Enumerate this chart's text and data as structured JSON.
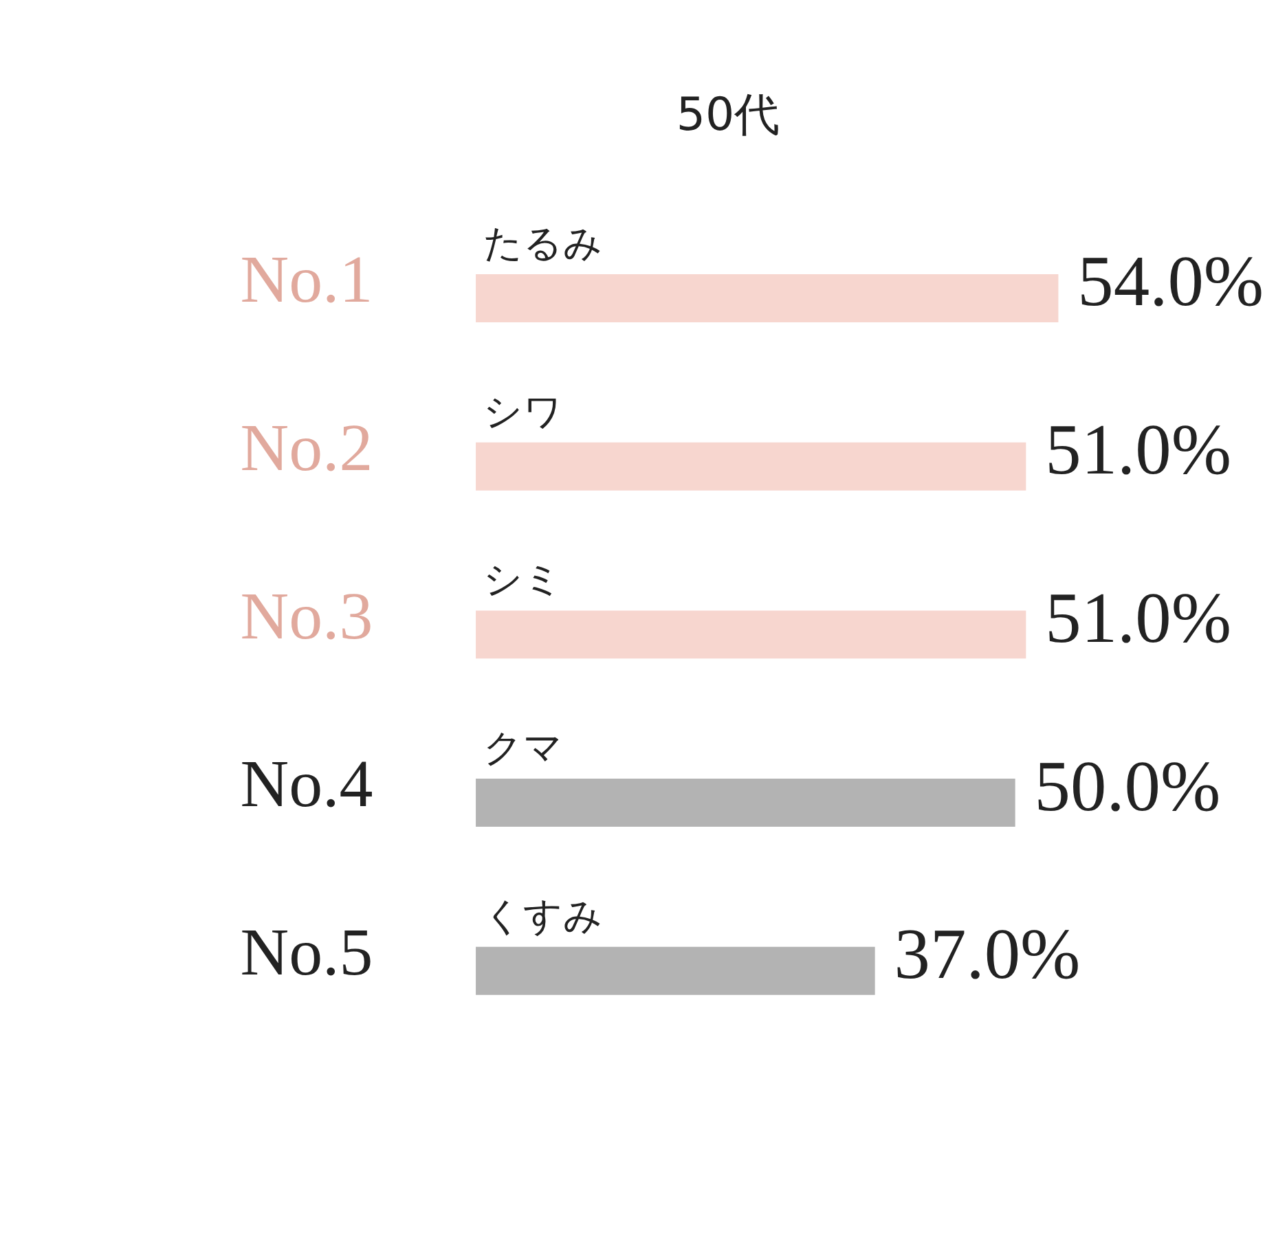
{
  "chart_data": {
    "type": "bar",
    "orientation": "horizontal",
    "title": "50代",
    "categories": [
      "たるみ",
      "シワ",
      "シミ",
      "クマ",
      "くすみ"
    ],
    "values": [
      54,
      51,
      51,
      50,
      37
    ],
    "colors": [
      "#f7d6cf",
      "#f7d6cf",
      "#f7d6cf",
      "#b3b3b3",
      "#b3b3b3"
    ],
    "value_labels": [
      "54.0%",
      "51.0%",
      "51.0%",
      "50.0%",
      "37.0%"
    ],
    "annotations": [
      "No.1",
      "No.2",
      "No.3",
      "No.4",
      "No.5"
    ]
  }
}
